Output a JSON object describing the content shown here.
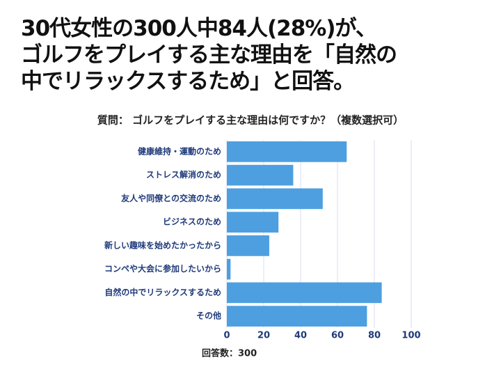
{
  "chart_data": {
    "type": "barh",
    "title": "30代女性の300人中84人(28%)が、\nゴルフをプレイする主な理由を「自然の\n中でリラックスするため」と回答。",
    "subtitle": "質問： ゴルフをプレイする主な理由は何ですか？（複数選択可）",
    "note": "回答数：300",
    "categories": [
      "健康維持・運動のため",
      "ストレス解消のため",
      "友人や同僚との交流のため",
      "ビジネスのため",
      "新しい趣味を始めたかったから",
      "コンペや大会に参加したいから",
      "自然の中でリラックスするため",
      "その他"
    ],
    "values": [
      65,
      36,
      52,
      28,
      23,
      2,
      84,
      76
    ],
    "color": "#4d9fe0",
    "xlim": [
      0,
      100
    ],
    "xticks": [
      0,
      20,
      40,
      60,
      80,
      100
    ],
    "grid": true
  }
}
